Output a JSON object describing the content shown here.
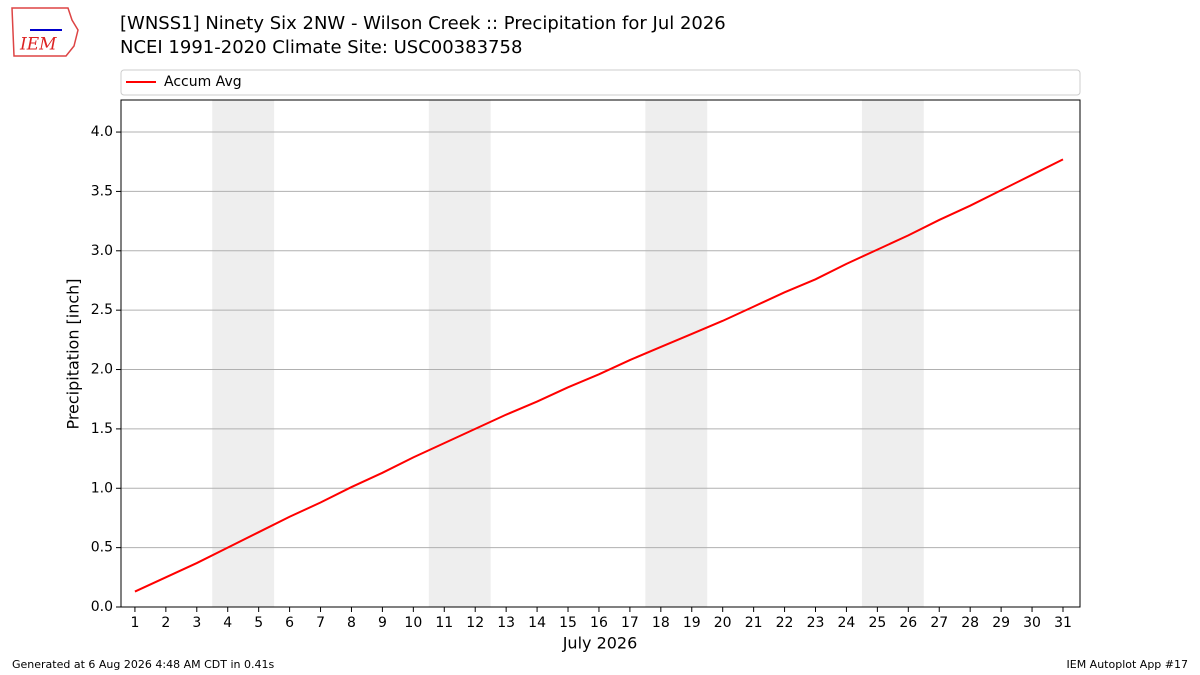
{
  "chart_data": {
    "type": "line",
    "title": "[WNSS1] Ninety Six 2NW - Wilson Creek :: Precipitation for Jul 2026",
    "subtitle": "NCEI 1991-2020 Climate Site: USC00383758",
    "logo_text": "IEM",
    "x_label": "July 2026",
    "y_label": "Precipitation [inch]",
    "x": [
      1,
      2,
      3,
      4,
      5,
      6,
      7,
      8,
      9,
      10,
      11,
      12,
      13,
      14,
      15,
      16,
      17,
      18,
      19,
      20,
      21,
      22,
      23,
      24,
      25,
      26,
      27,
      28,
      29,
      30,
      31
    ],
    "series": [
      {
        "name": "Accum Avg",
        "color": "#ff0000",
        "values": [
          0.13,
          0.25,
          0.37,
          0.5,
          0.63,
          0.76,
          0.88,
          1.01,
          1.13,
          1.26,
          1.38,
          1.5,
          1.62,
          1.73,
          1.85,
          1.96,
          2.08,
          2.19,
          2.3,
          2.41,
          2.53,
          2.65,
          2.76,
          2.89,
          3.01,
          3.13,
          3.26,
          3.38,
          3.51,
          3.64,
          3.77
        ]
      }
    ],
    "xlim": [
      0.55,
      31.55
    ],
    "xticks": [
      1,
      2,
      3,
      4,
      5,
      6,
      7,
      8,
      9,
      10,
      11,
      12,
      13,
      14,
      15,
      16,
      17,
      18,
      19,
      20,
      21,
      22,
      23,
      24,
      25,
      26,
      27,
      28,
      29,
      30,
      31
    ],
    "ylim": [
      0,
      4.27
    ],
    "yticks": [
      {
        "value": 0,
        "label": "0.0"
      },
      0.5,
      {
        "value": 1,
        "label": "1.0"
      },
      1.5,
      {
        "value": 2,
        "label": "2.0"
      },
      2.5,
      {
        "value": 3,
        "label": "3.0"
      },
      3.5,
      {
        "value": 4,
        "label": "4.0"
      }
    ],
    "highlight_spans": [
      [
        3.5,
        5.5
      ],
      [
        10.5,
        12.5
      ],
      [
        17.5,
        19.5
      ],
      [
        24.5,
        26.5
      ]
    ],
    "highlight_color": "#eeeeee",
    "grid": true,
    "legend": "top",
    "footer_left": "Generated at 6 Aug 2026 4:48 AM CDT in 0.41s",
    "footer_right": "IEM Autoplot App #17"
  }
}
